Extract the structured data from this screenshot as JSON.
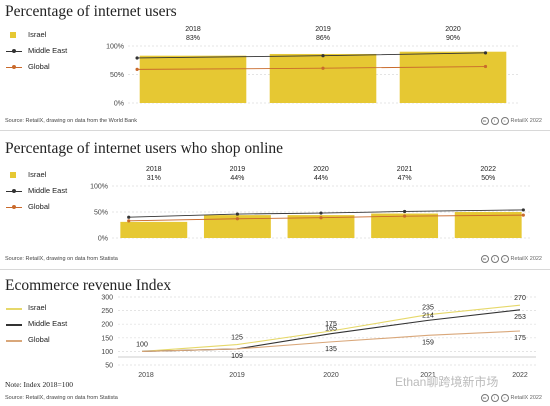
{
  "chart_data": [
    {
      "type": "bar",
      "title": "Percentage of internet users",
      "categories": [
        "2018",
        "2019",
        "2020"
      ],
      "series": [
        {
          "name": "Israel",
          "kind": "bar",
          "values": [
            83,
            86,
            90
          ],
          "color": "#e6c833"
        },
        {
          "name": "Middle East",
          "kind": "line",
          "values": [
            79,
            83,
            88
          ],
          "color": "#333333"
        },
        {
          "name": "Global",
          "kind": "line",
          "values": [
            59,
            61,
            64
          ],
          "color": "#c96a2c"
        }
      ],
      "value_labels": [
        "83%",
        "86%",
        "90%"
      ],
      "y_ticks": [
        "100%",
        "50%",
        "0%"
      ],
      "ylim": [
        0,
        100
      ],
      "legend": "left",
      "source": "Source: RetailX, drawing on data from the World Bank",
      "credit": "RetailX 2022"
    },
    {
      "type": "bar",
      "title": "Percentage of internet users who shop online",
      "categories": [
        "2018",
        "2019",
        "2020",
        "2021",
        "2022"
      ],
      "series": [
        {
          "name": "Israel",
          "kind": "bar",
          "values": [
            31,
            44,
            44,
            47,
            50
          ],
          "color": "#e6c833"
        },
        {
          "name": "Middle East",
          "kind": "line",
          "values": [
            40,
            46,
            48,
            51,
            54
          ],
          "color": "#333333"
        },
        {
          "name": "Global",
          "kind": "line",
          "values": [
            33,
            37,
            39,
            42,
            44
          ],
          "color": "#c96a2c"
        }
      ],
      "value_labels": [
        "31%",
        "44%",
        "44%",
        "47%",
        "50%"
      ],
      "y_ticks": [
        "100%",
        "50%",
        "0%"
      ],
      "ylim": [
        0,
        100
      ],
      "legend": "left",
      "source": "Source: RetailX, drawing on data from Statista",
      "credit": "RetailX 2022"
    },
    {
      "type": "line",
      "title": "Ecommerce revenue Index",
      "categories": [
        "2018",
        "2019",
        "2020",
        "2021",
        "2022"
      ],
      "series": [
        {
          "name": "Israel",
          "values": [
            100,
            125,
            175,
            235,
            270
          ],
          "color": "#e6d86a",
          "labels": [
            "100",
            "125",
            "175",
            "235",
            "270"
          ]
        },
        {
          "name": "Middle East",
          "values": [
            100,
            109,
            165,
            214,
            253
          ],
          "color": "#333333",
          "labels": [
            "",
            "",
            "165",
            "214",
            "253"
          ]
        },
        {
          "name": "Global",
          "values": [
            100,
            109,
            135,
            159,
            175
          ],
          "color": "#d9a77a",
          "labels": [
            "",
            "109",
            "135",
            "159",
            "175"
          ]
        }
      ],
      "y_ticks": [
        "300",
        "250",
        "200",
        "150",
        "100",
        "50"
      ],
      "ylim": [
        50,
        300
      ],
      "legend": "left",
      "note": "Note: Index 2018=100",
      "source": "Source: RetailX, drawing on data from Statista",
      "credit": "RetailX 2022"
    }
  ],
  "watermark": "Ethan聊跨境新市场"
}
